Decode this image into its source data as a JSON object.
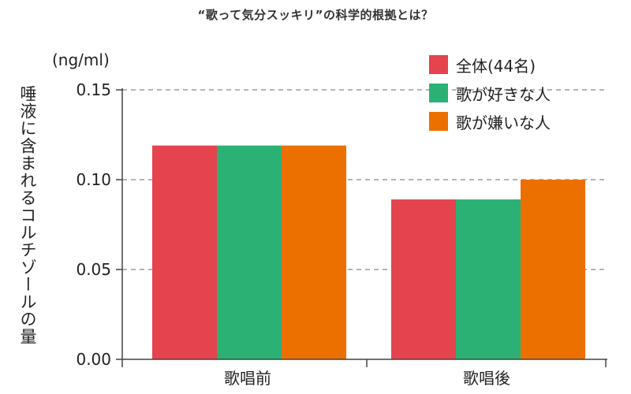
{
  "title": "“歌って気分スッキリ”の科学的根拠とは？",
  "chart_data": {
    "type": "bar",
    "title": "“歌って気分スッキリ”の科学的根拠とは？",
    "unit": "(ng/ml)",
    "ylabel": "唾液に含まれるコルチゾールの量",
    "xlabel": "",
    "categories": [
      "歌唱前",
      "歌唱後"
    ],
    "series": [
      {
        "name": "全体(44名)",
        "color": "#e5434e",
        "values": [
          0.119,
          0.089
        ]
      },
      {
        "name": "歌が好きな人",
        "color": "#2bb174",
        "values": [
          0.119,
          0.089
        ]
      },
      {
        "name": "歌が嫌いな人",
        "color": "#ec7000",
        "values": [
          0.119,
          0.1
        ]
      }
    ],
    "ylim": [
      0,
      0.15
    ],
    "yticks": [
      "0.00",
      "0.05",
      "0.10",
      "0.15"
    ],
    "ytick_values": [
      0,
      0.05,
      0.1,
      0.15
    ],
    "grid": "horizontal dashed",
    "legend_position": "top-right"
  }
}
